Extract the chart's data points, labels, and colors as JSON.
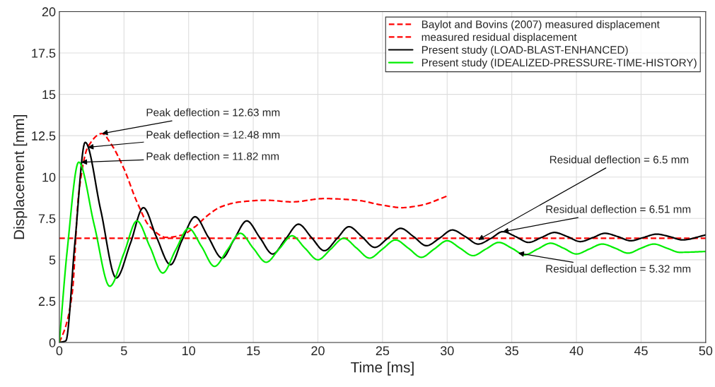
{
  "chart_data": {
    "type": "line",
    "xlabel": "Time [ms]",
    "ylabel": "Displacement [mm]",
    "xlim": [
      0,
      50
    ],
    "ylim": [
      0,
      20
    ],
    "xticks": [
      0,
      5,
      10,
      15,
      20,
      25,
      30,
      35,
      40,
      45,
      50
    ],
    "yticks": [
      0,
      2.5,
      5,
      7.5,
      10,
      12.5,
      15,
      17.5,
      20
    ],
    "grid": true,
    "legend": "top right",
    "series": [
      {
        "name": "Baylot and Bovins (2007) measured displacement",
        "color": "#ff0000",
        "line_style": "dashed",
        "x": [
          0,
          0.5,
          1.0,
          1.5,
          2.2,
          3.3,
          4.0,
          5.0,
          6.0,
          7.0,
          8.3,
          9.5,
          10.5,
          11.5,
          12.5,
          14,
          16,
          18,
          20.5,
          23,
          25,
          26.5,
          28,
          30
        ],
        "values": [
          0,
          1.0,
          3.0,
          9.0,
          11.8,
          12.63,
          12.0,
          10.5,
          8.5,
          7.0,
          6.35,
          6.5,
          7.0,
          7.7,
          8.2,
          8.5,
          8.6,
          8.5,
          8.7,
          8.6,
          8.3,
          8.15,
          8.3,
          8.85
        ]
      },
      {
        "name": "measured residual displacement",
        "color": "#ff0000",
        "line_style": "dashed",
        "x": [
          0,
          50
        ],
        "values": [
          6.3,
          6.3
        ]
      },
      {
        "name": "Present study (LOAD-BLAST-ENHANCED)",
        "color": "#000000",
        "line_style": "solid",
        "x": [
          0,
          0.5,
          1.2,
          2.0,
          3.2,
          4.4,
          5.5,
          6.5,
          7.5,
          8.6,
          9.5,
          10.5,
          11.5,
          12.6,
          13.5,
          14.5,
          15.5,
          16.5,
          17.5,
          18.5,
          19.5,
          20.5,
          21.5,
          22.4,
          23.4,
          24.4,
          25.4,
          26.4,
          27.4,
          28.4,
          29.4,
          30.4,
          31.4,
          32.4,
          33.4,
          34.3,
          35.3,
          36.3,
          37.3,
          38.3,
          39.3,
          40.3,
          41.3,
          42.2,
          43.2,
          44.2,
          45.2,
          46.2,
          47.2,
          48.2,
          50
        ],
        "values": [
          0,
          0.1,
          6.0,
          12.1,
          8.0,
          3.9,
          6.0,
          8.15,
          6.4,
          4.7,
          6.2,
          7.6,
          6.4,
          5.1,
          6.2,
          7.35,
          6.35,
          5.35,
          6.25,
          7.15,
          6.35,
          5.55,
          6.3,
          7.0,
          6.4,
          5.75,
          6.3,
          6.9,
          6.4,
          5.85,
          6.3,
          6.8,
          6.4,
          5.95,
          6.3,
          6.7,
          6.4,
          6.05,
          6.35,
          6.65,
          6.4,
          6.1,
          6.35,
          6.6,
          6.4,
          6.15,
          6.35,
          6.55,
          6.4,
          6.2,
          6.5
        ]
      },
      {
        "name": "Present study (IDEALIZED-PRESSURE-TIME-HISTORY)",
        "color": "#00ee00",
        "line_style": "solid",
        "x": [
          0,
          0.6,
          1.5,
          2.7,
          3.9,
          5.0,
          6.0,
          7.0,
          8.0,
          9.0,
          10.0,
          11.0,
          12.0,
          13.0,
          14.0,
          15.0,
          16.0,
          17.0,
          18.0,
          19.0,
          20.0,
          21.0,
          22.0,
          23.0,
          24.0,
          25.0,
          26.0,
          27.0,
          28.0,
          29.0,
          30.0,
          31.0,
          32.0,
          33.0,
          34.0,
          35.0,
          36.0,
          37.0,
          38.0,
          39.0,
          40.0,
          41.0,
          42.0,
          43.0,
          44.0,
          45.0,
          46.0,
          47.0,
          48.0,
          50
        ],
        "values": [
          0,
          5.5,
          10.9,
          7.1,
          3.4,
          5.4,
          7.35,
          5.8,
          4.2,
          5.6,
          6.9,
          5.8,
          4.6,
          5.6,
          6.6,
          5.7,
          4.85,
          5.65,
          6.45,
          5.7,
          5.0,
          5.65,
          6.3,
          5.7,
          5.1,
          5.65,
          6.2,
          5.7,
          5.15,
          5.65,
          6.15,
          5.7,
          5.25,
          5.65,
          6.05,
          5.7,
          5.3,
          5.65,
          6.0,
          5.7,
          5.35,
          5.65,
          5.95,
          5.7,
          5.4,
          5.7,
          5.95,
          5.7,
          5.45,
          5.5
        ]
      }
    ],
    "annotations": [
      {
        "text": "Peak deflection = 12.63 mm",
        "x": 3.3,
        "y": 12.63
      },
      {
        "text": "Peak deflection = 12.48 mm",
        "x": 2.2,
        "y": 11.8
      },
      {
        "text": "Peak deflection = 11.82 mm",
        "x": 1.7,
        "y": 10.9
      },
      {
        "text": "Residual deflection = 6.5 mm",
        "x": 32.4,
        "y": 6.2
      },
      {
        "text": "Residual deflection = 6.51 mm",
        "x": 34.3,
        "y": 6.7
      },
      {
        "text": "Residual deflection = 5.32 mm",
        "x": 35.5,
        "y": 5.4
      }
    ]
  }
}
